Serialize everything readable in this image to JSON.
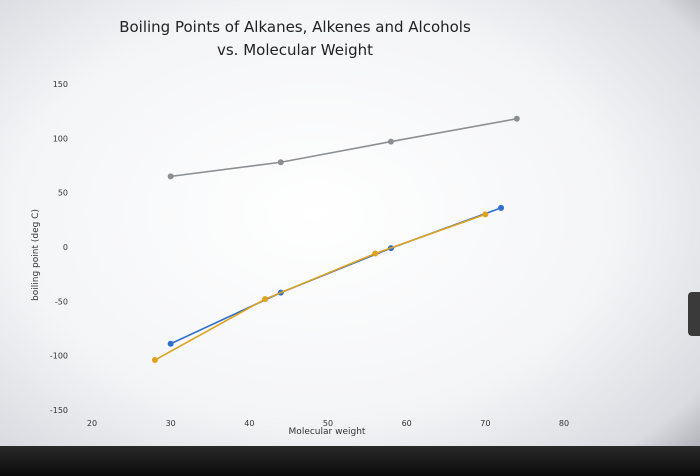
{
  "chart_data": {
    "type": "line",
    "title": [
      "Boiling Points of Alkanes, Alkenes and Alcohols",
      "vs. Molecular Weight"
    ],
    "xlabel": "Molecular weight",
    "ylabel": "boiling point (deg C)",
    "xlim": [
      20,
      80
    ],
    "ylim": [
      -150,
      150
    ],
    "x_ticks": [
      20,
      30,
      40,
      50,
      60,
      70,
      80
    ],
    "y_ticks": [
      150,
      100,
      50,
      0,
      -50,
      -100,
      -150
    ],
    "grid": false,
    "legend": "none",
    "series": [
      {
        "color": "#8c8f92",
        "points": [
          [
            30,
            65
          ],
          [
            44,
            78
          ],
          [
            58,
            97
          ],
          [
            74,
            118
          ]
        ]
      },
      {
        "color": "#2f6fd0",
        "points": [
          [
            30,
            -89
          ],
          [
            44,
            -42
          ],
          [
            58,
            -1
          ],
          [
            72,
            36
          ]
        ]
      },
      {
        "color": "#e0a21c",
        "points": [
          [
            28,
            -104
          ],
          [
            42,
            -48
          ],
          [
            56,
            -6
          ],
          [
            70,
            30
          ]
        ]
      }
    ]
  }
}
